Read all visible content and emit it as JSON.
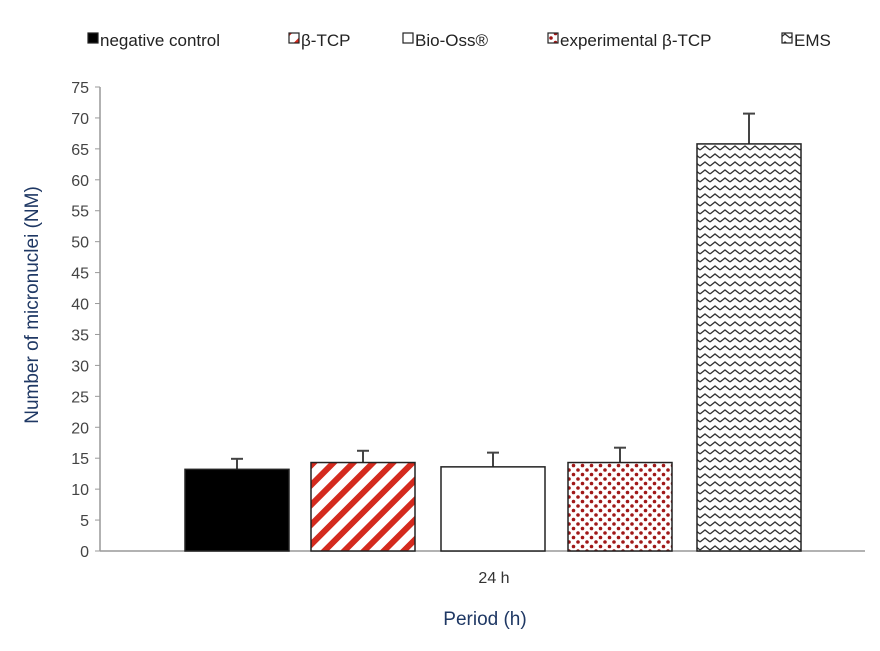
{
  "chart_data": {
    "type": "bar",
    "categories": [
      "24 h"
    ],
    "series": [
      {
        "name": "negative control",
        "values": [
          13.2
        ],
        "error": [
          1.7
        ],
        "color": "#000000",
        "pattern": "solid"
      },
      {
        "name": "β-TCP",
        "values": [
          14.3
        ],
        "error": [
          1.9
        ],
        "color": "#d42a1e",
        "pattern": "diagonal-stripes"
      },
      {
        "name": "Bio-Oss®",
        "values": [
          13.6
        ],
        "error": [
          2.3
        ],
        "color": "#ffffff",
        "pattern": "solid"
      },
      {
        "name": "experimental β-TCP",
        "values": [
          14.3
        ],
        "error": [
          2.4
        ],
        "color": "#a01818",
        "pattern": "dots"
      },
      {
        "name": "EMS",
        "values": [
          65.8
        ],
        "error": [
          4.9
        ],
        "color": "#333333",
        "pattern": "zigzag"
      }
    ],
    "xlabel": "Period (h)",
    "ylabel": "Number of micronuclei (NM)",
    "ylim": [
      0,
      75
    ],
    "yticks": [
      0,
      5,
      10,
      15,
      20,
      25,
      30,
      35,
      40,
      45,
      50,
      55,
      60,
      65,
      70,
      75
    ],
    "legend_position": "top",
    "grid": false,
    "label_color": "#1f3864"
  }
}
